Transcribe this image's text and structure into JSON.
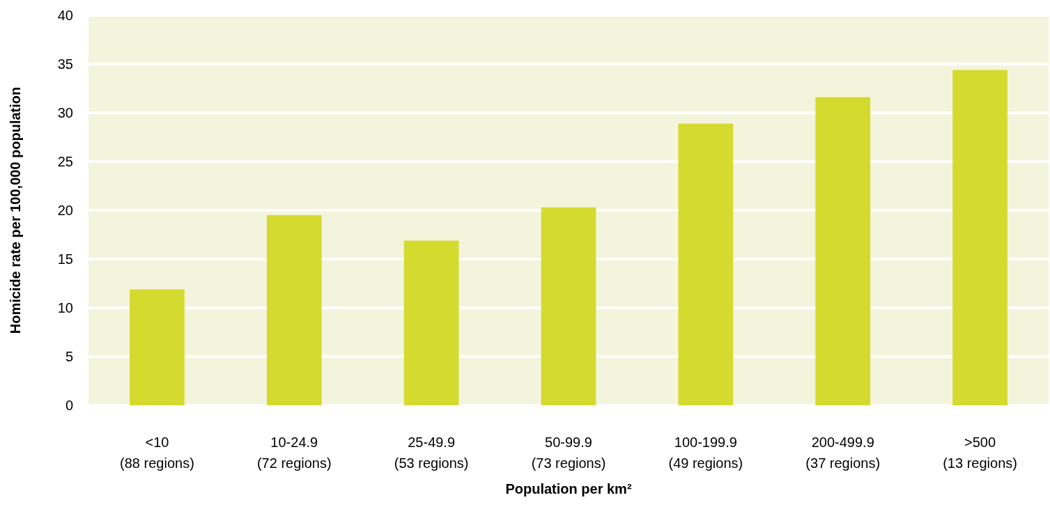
{
  "chart_data": {
    "type": "bar",
    "categories": [
      "<10\n(88 regions)",
      "10-24.9\n(72 regions)",
      "25-49.9\n(53 regions)",
      "50-99.9\n(73 regions)",
      "100-199.9\n(49 regions)",
      "200-499.9\n(37 regions)",
      ">500\n(13 regions)"
    ],
    "values": [
      11.9,
      19.5,
      16.9,
      20.3,
      28.9,
      31.6,
      34.4
    ],
    "color": "#d5da2f",
    "xlabel": "Population per km²",
    "ylabel": "Homicide rate per 100,000 population",
    "ylim": [
      0,
      40
    ],
    "yticks": [
      0,
      5,
      10,
      15,
      20,
      25,
      30,
      35,
      40
    ],
    "grid": "y"
  }
}
